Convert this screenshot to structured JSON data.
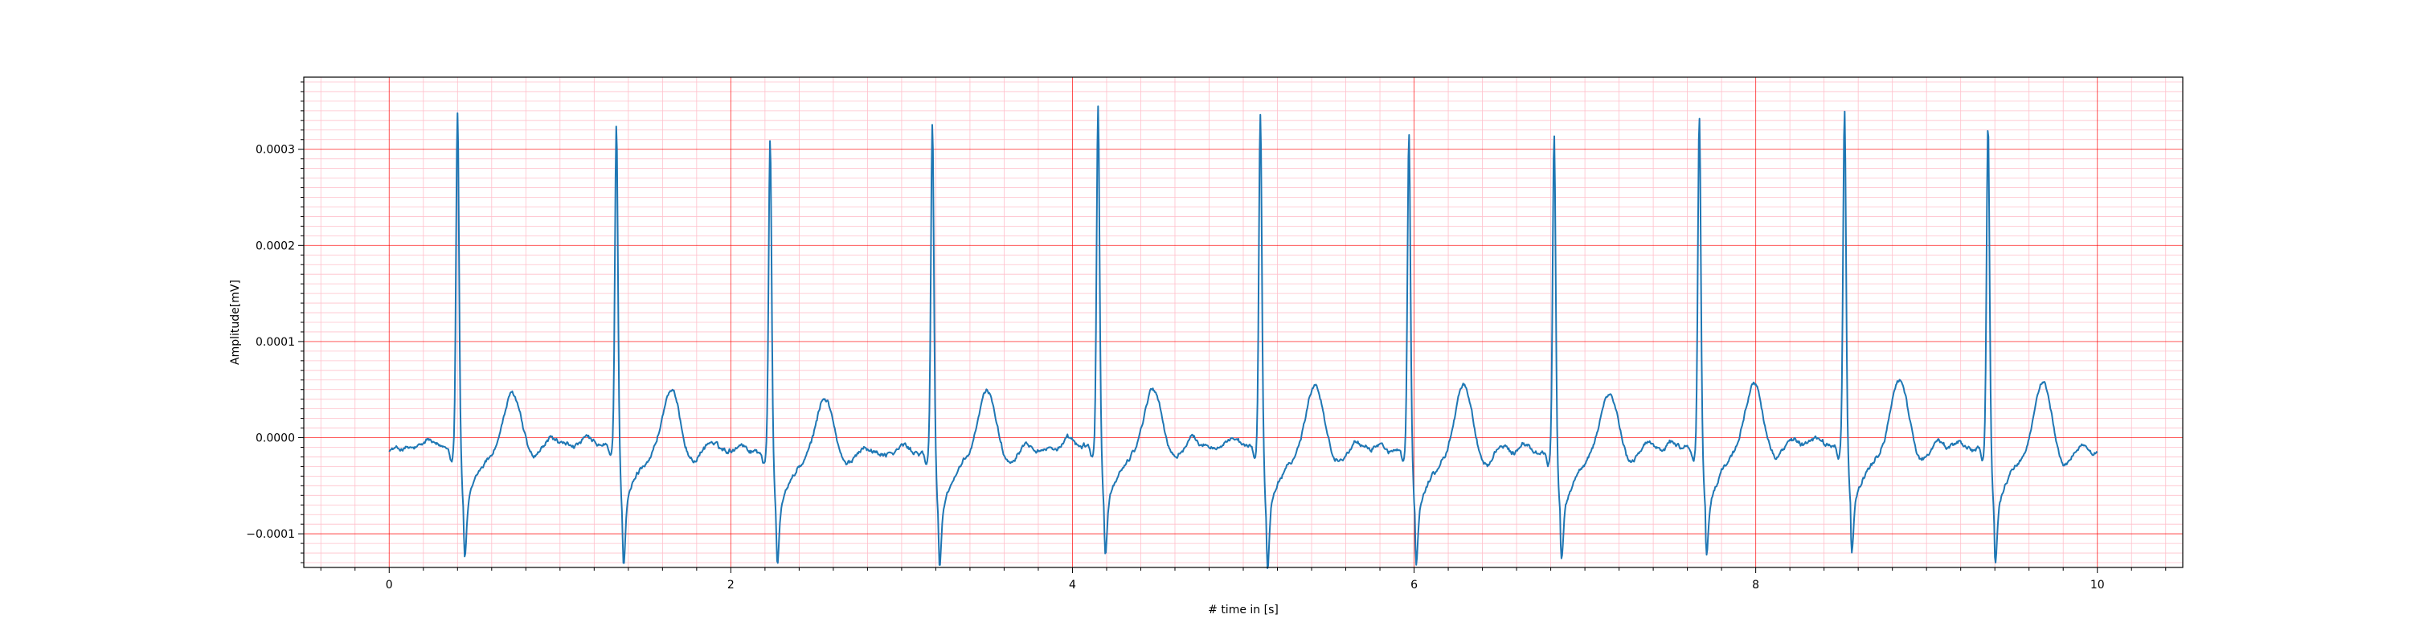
{
  "chart_data": {
    "type": "line",
    "title": "",
    "xlabel": "# time in [s]",
    "ylabel": "Amplitude[mV]",
    "xlim": [
      -0.5,
      10.5
    ],
    "ylim": [
      -0.000135,
      0.000375
    ],
    "x_ticks": [
      0,
      2,
      4,
      6,
      8,
      10
    ],
    "x_tick_labels": [
      "0",
      "2",
      "4",
      "6",
      "8",
      "10"
    ],
    "y_ticks": [
      -0.0001,
      0.0,
      0.0001,
      0.0002,
      0.0003
    ],
    "y_tick_labels": [
      "−0.0001",
      "0.0000",
      "0.0001",
      "0.0002",
      "0.0003"
    ],
    "grid": {
      "major": true,
      "minor": true,
      "major_color": "#ff0000",
      "minor_color": "#ffc0cb"
    },
    "line_color": "#1f77b4",
    "x_range": [
      0,
      10
    ],
    "beats": [
      {
        "r_time": 0.4,
        "r_peak": 0.00035,
        "s_min": -9.8e-05,
        "t_peak": 2.6e-05
      },
      {
        "r_time": 1.33,
        "r_peak": 0.000335,
        "s_min": -0.000105,
        "t_peak": 3.2e-05
      },
      {
        "r_time": 2.23,
        "r_peak": 0.000326,
        "s_min": -9.7e-05,
        "t_peak": 3e-05
      },
      {
        "r_time": 3.18,
        "r_peak": 0.000341,
        "s_min": -0.000104,
        "t_peak": 3.5e-05
      },
      {
        "r_time": 4.15,
        "r_peak": 0.000354,
        "s_min": -9.8e-05,
        "t_peak": 3.2e-05
      },
      {
        "r_time": 5.1,
        "r_peak": 0.000348,
        "s_min": -0.00011,
        "t_peak": 4e-05
      },
      {
        "r_time": 5.97,
        "r_peak": 0.000328,
        "s_min": -0.0001,
        "t_peak": 4.4e-05
      },
      {
        "r_time": 6.82,
        "r_peak": 0.000332,
        "s_min": -9.3e-05,
        "t_peak": 3.4e-05
      },
      {
        "r_time": 7.67,
        "r_peak": 0.000344,
        "s_min": -9.7e-05,
        "t_peak": 3.8e-05
      },
      {
        "r_time": 8.52,
        "r_peak": 0.000349,
        "s_min": -9.8e-05,
        "t_peak": 4.3e-05
      },
      {
        "r_time": 9.36,
        "r_peak": 0.000338,
        "s_min": -9.8e-05,
        "t_peak": 4.5e-05
      }
    ]
  }
}
